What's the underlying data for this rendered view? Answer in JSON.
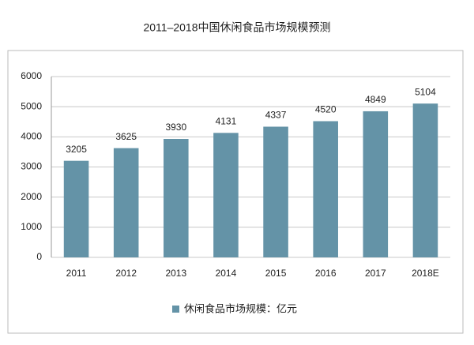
{
  "chart_data": {
    "type": "bar",
    "title": "2011–2018中国休闲食品市场规模预测",
    "categories": [
      "2011",
      "2012",
      "2013",
      "2014",
      "2015",
      "2016",
      "2017",
      "2018E"
    ],
    "series": [
      {
        "name": "休闲食品市场规模：亿元",
        "color": "#6493a7",
        "values": [
          3205,
          3625,
          3930,
          4131,
          4337,
          4520,
          4849,
          5104
        ]
      }
    ],
    "ylim": [
      0,
      6000
    ],
    "yticks": [
      0,
      1000,
      2000,
      3000,
      4000,
      5000,
      6000
    ],
    "grid": true,
    "legend": "bottom",
    "data_labels": true
  }
}
